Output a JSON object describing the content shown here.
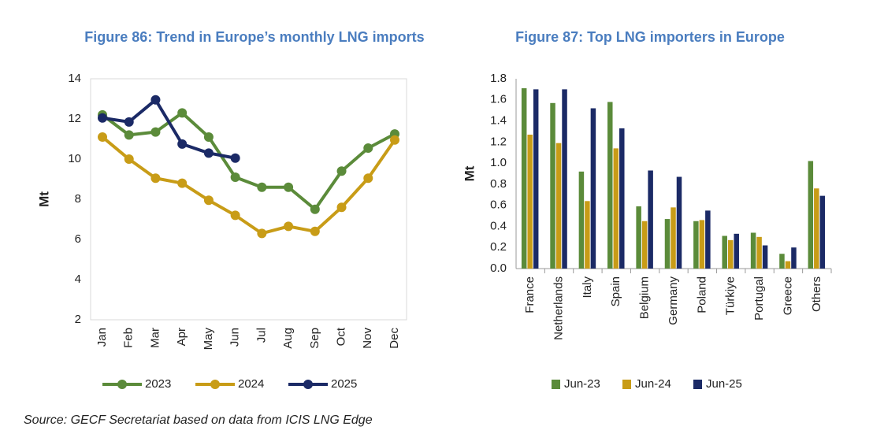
{
  "chart_data": [
    {
      "type": "line",
      "title": "Figure 86: Trend in Europe’s monthly LNG imports",
      "y_label": "Mt",
      "categories": [
        "Jan",
        "Feb",
        "Mar",
        "Apr",
        "May",
        "Jun",
        "Jul",
        "Aug",
        "Sep",
        "Oct",
        "Nov",
        "Dec"
      ],
      "series": [
        {
          "name": "2023",
          "color": "#5b8b3a",
          "values": [
            12.2,
            11.2,
            11.35,
            12.3,
            11.1,
            9.1,
            8.6,
            8.6,
            7.5,
            9.4,
            10.55,
            11.25
          ]
        },
        {
          "name": "2024",
          "color": "#c89c17",
          "values": [
            11.1,
            10.0,
            9.05,
            8.8,
            7.95,
            7.2,
            6.3,
            6.65,
            6.4,
            7.6,
            9.05,
            10.95
          ]
        },
        {
          "name": "2025",
          "color": "#1b2a66",
          "values": [
            12.05,
            11.85,
            12.95,
            10.75,
            10.3,
            10.05,
            null,
            null,
            null,
            null,
            null,
            null
          ]
        }
      ],
      "ylim": [
        2,
        14
      ],
      "yticks": [
        2,
        4,
        6,
        8,
        10,
        12,
        14
      ],
      "legend": "bottom"
    },
    {
      "type": "bar",
      "title": "Figure 87: Top LNG importers in Europe",
      "y_label": "Mt",
      "categories": [
        "France",
        "Netherlands",
        "Italy",
        "Spain",
        "Belgium",
        "Germany",
        "Poland",
        "Türkiye",
        "Portugal",
        "Greece",
        "Others"
      ],
      "series": [
        {
          "name": "Jun-23",
          "color": "#5b8b3a",
          "values": [
            1.71,
            1.57,
            0.92,
            1.58,
            0.59,
            0.47,
            0.45,
            0.31,
            0.34,
            0.14,
            1.02
          ]
        },
        {
          "name": "Jun-24",
          "color": "#c89c17",
          "values": [
            1.27,
            1.19,
            0.64,
            1.14,
            0.45,
            0.58,
            0.46,
            0.27,
            0.3,
            0.07,
            0.76
          ]
        },
        {
          "name": "Jun-25",
          "color": "#1b2a66",
          "values": [
            1.7,
            1.7,
            1.52,
            1.33,
            0.93,
            0.87,
            0.55,
            0.33,
            0.22,
            0.2,
            0.69
          ]
        }
      ],
      "ylim": [
        0,
        1.8
      ],
      "yticks": [
        {
          "value": 0,
          "label": "0.0"
        },
        0.2,
        0.4,
        0.6,
        0.8,
        {
          "value": 1,
          "label": "1.0"
        },
        1.2,
        1.4,
        1.6,
        1.8
      ],
      "legend": "bottom"
    }
  ],
  "source": "Source: GECF Secretariat based on data from ICIS LNG Edge"
}
